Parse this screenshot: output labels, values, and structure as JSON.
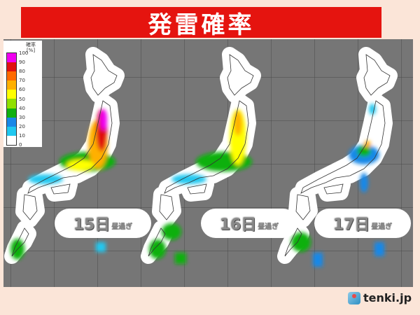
{
  "title": "発雷確率",
  "legend": {
    "title_line1": "確率",
    "title_line2": "[%]",
    "ticks": [
      "100",
      "90",
      "80",
      "70",
      "60",
      "50",
      "40",
      "30",
      "20",
      "10",
      "0"
    ],
    "colors": [
      "#f000f0",
      "#e01010",
      "#ff6a00",
      "#ffb000",
      "#ffff00",
      "#90e000",
      "#10b010",
      "#1888e8",
      "#20c8f0",
      "#ffffff"
    ]
  },
  "panels": [
    {
      "day": "15日",
      "time": "昼過ぎ"
    },
    {
      "day": "16日",
      "time": "昼過ぎ"
    },
    {
      "day": "17日",
      "time": "昼過ぎ"
    }
  ],
  "logo": "tenki.jp",
  "colors": {
    "title_bar": "#e5140f",
    "background": "#fbe5d8",
    "map_bg": "#767676"
  }
}
